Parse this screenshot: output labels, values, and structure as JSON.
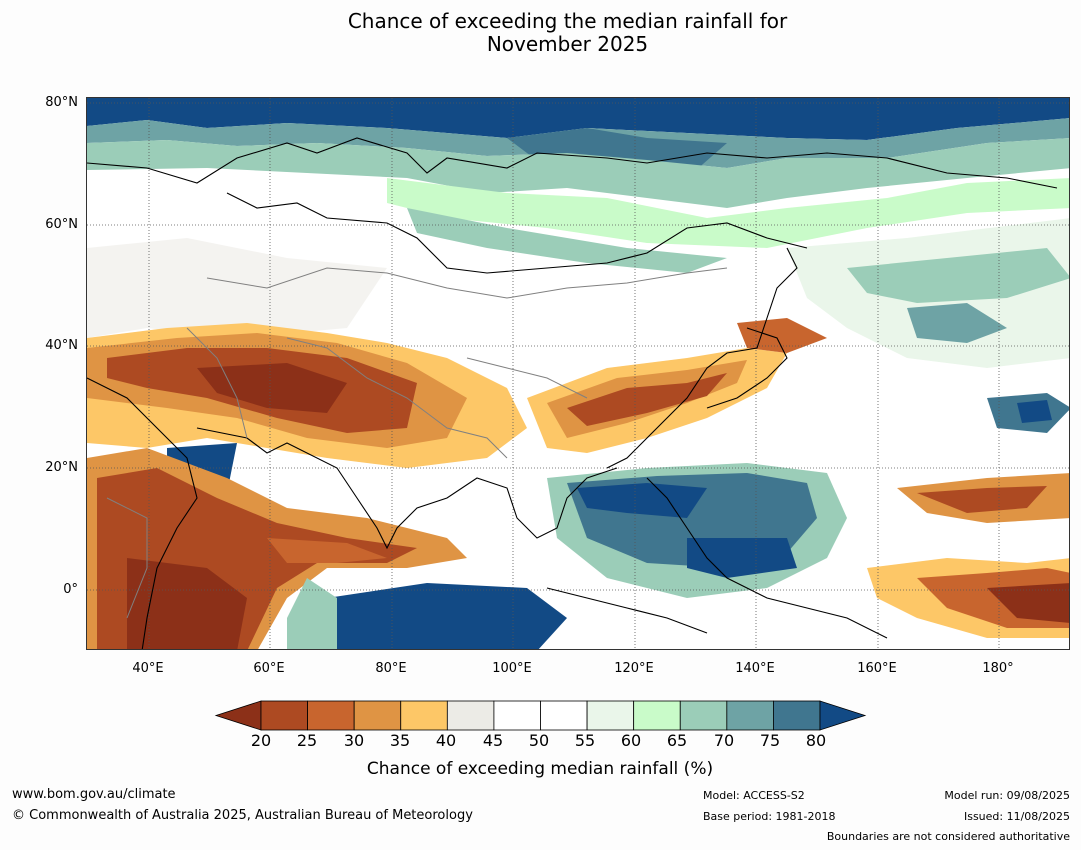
{
  "title": {
    "line1": "Chance of exceeding the median rainfall for",
    "line2": "November 2025"
  },
  "map": {
    "lat_labels": [
      "80°N",
      "60°N",
      "40°N",
      "20°N",
      "0°"
    ],
    "lon_labels": [
      "40°E",
      "60°E",
      "80°E",
      "100°E",
      "120°E",
      "140°E",
      "160°E",
      "180°"
    ],
    "colors": {
      "ocean_background": "#ffffff",
      "coastline": "#000000",
      "borders": "#808080",
      "gridlines": "#555555"
    }
  },
  "colorbar": {
    "ticks": [
      "20",
      "25",
      "30",
      "35",
      "40",
      "45",
      "50",
      "55",
      "60",
      "65",
      "70",
      "75",
      "80"
    ],
    "colors": [
      "#8c3018",
      "#ad4a22",
      "#c8652e",
      "#df9444",
      "#fdc767",
      "#ecebe6",
      "#ffffff",
      "#ffffff",
      "#eaf6ea",
      "#c9fbc9",
      "#9bcdb8",
      "#6ea3a5",
      "#40768f",
      "#124a85"
    ],
    "label": "Chance of exceeding median rainfall (%)"
  },
  "footer": {
    "website": "www.bom.gov.au/climate",
    "copyright": "© Commonwealth of Australia 2025, Australian Bureau of Meteorology",
    "model": "Model: ACCESS-S2",
    "base_period": "Base period: 1981-2018",
    "model_run": "Model run: 09/08/2025",
    "issued": "Issued: 11/08/2025",
    "disclaimer": "Boundaries are not considered authoritative"
  }
}
